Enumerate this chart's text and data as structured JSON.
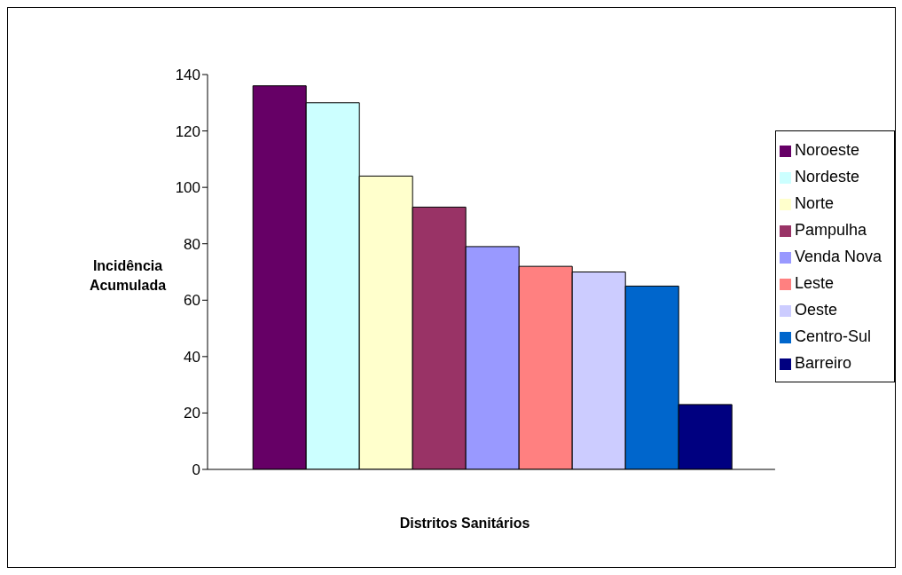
{
  "chart_data": {
    "type": "bar",
    "xlabel": "Distritos Sanitários",
    "ylabel": "Incidência Acumulada",
    "categories": [
      null
    ],
    "ylim": [
      0,
      140
    ],
    "yticks": [
      0,
      20,
      40,
      60,
      80,
      100,
      120,
      140
    ],
    "grid": false,
    "legend": "right",
    "series": [
      {
        "name": "Noroeste",
        "color": "#660066",
        "values": [
          136
        ]
      },
      {
        "name": "Nordeste",
        "color": "#ccffff",
        "values": [
          130
        ]
      },
      {
        "name": "Norte",
        "color": "#ffffcc",
        "values": [
          104
        ]
      },
      {
        "name": "Pampulha",
        "color": "#993366",
        "values": [
          93
        ]
      },
      {
        "name": "Venda Nova",
        "color": "#9999ff",
        "values": [
          79
        ]
      },
      {
        "name": "Leste",
        "color": "#ff8080",
        "values": [
          72
        ]
      },
      {
        "name": "Oeste",
        "color": "#ccccff",
        "values": [
          70
        ]
      },
      {
        "name": "Centro-Sul",
        "color": "#0066cc",
        "values": [
          65
        ]
      },
      {
        "name": "Barreiro",
        "color": "#000080",
        "values": [
          23
        ]
      }
    ]
  }
}
